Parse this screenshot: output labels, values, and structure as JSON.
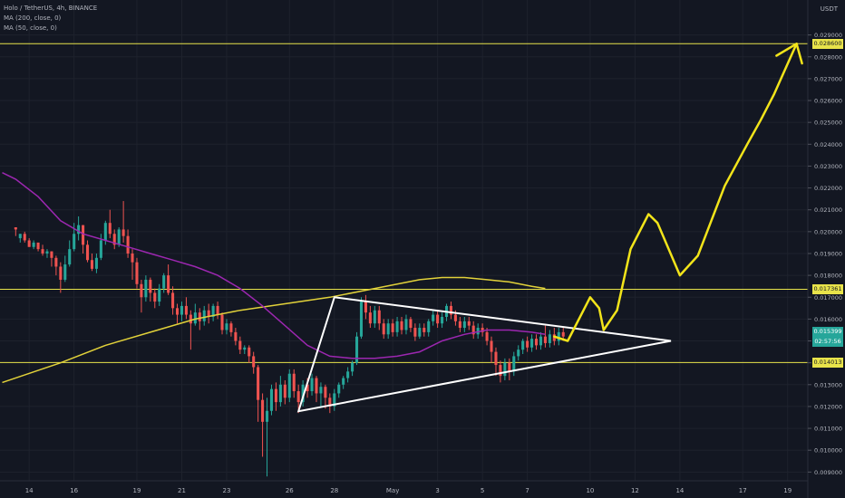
{
  "legend": {
    "symbol": "Holo / TetherUS, 4h, BINANCE",
    "ma200": "MA (200, close, 0)",
    "ma50": "MA (50, close, 0)"
  },
  "currency": "USDT",
  "colors": {
    "background": "#131722",
    "grid": "#1e222d",
    "up": "#26a69a",
    "down": "#ef5350",
    "ma200": "#e2d23a",
    "ma50": "#9c27b0",
    "level": "#e8e34a",
    "drawing": "#ffffff",
    "projection": "#f2e41a",
    "last_price": "#26a69a"
  },
  "chart_data": {
    "type": "candlestick",
    "y_axis": {
      "ticks": [
        "0.029000",
        "0.028000",
        "0.027000",
        "0.026000",
        "0.025000",
        "0.024000",
        "0.023000",
        "0.022000",
        "0.021000",
        "0.020000",
        "0.019000",
        "0.018000",
        "0.017000",
        "0.016000",
        "0.015000",
        "0.014000",
        "0.013000",
        "0.012000",
        "0.011000",
        "0.010000",
        "0.009000"
      ],
      "tick_values": [
        0.029,
        0.028,
        0.027,
        0.026,
        0.025,
        0.024,
        0.023,
        0.022,
        0.021,
        0.02,
        0.019,
        0.018,
        0.017,
        0.016,
        0.015,
        0.014,
        0.013,
        0.012,
        0.011,
        0.01,
        0.009
      ],
      "range": [
        0.0086,
        0.0306
      ]
    },
    "x_axis": {
      "ticks": [
        "14",
        "16",
        "19",
        "21",
        "23",
        "26",
        "28",
        "May",
        "3",
        "5",
        "7",
        "10",
        "12",
        "14",
        "17",
        "19"
      ],
      "tick_index": [
        3,
        13,
        27,
        37,
        47,
        61,
        71,
        84,
        94,
        104,
        114,
        128,
        138,
        148,
        162,
        172
      ]
    },
    "x_range": [
      -3.5,
      176.5
    ],
    "levels": [
      {
        "value": 0.0286,
        "label": "0.028600"
      },
      {
        "value": 0.017361,
        "label": "0.017361"
      },
      {
        "value": 0.014013,
        "label": "0.014013"
      }
    ],
    "last_price": {
      "value": 0.015399,
      "label": "0.015399",
      "countdown": "02:57:56"
    },
    "candles": [
      [
        0.0202,
        0.0201,
        0.0202,
        0.0198
      ],
      [
        0.0197,
        0.0199,
        0.0199,
        0.0195
      ],
      [
        0.0199,
        0.0196,
        0.02,
        0.0195
      ],
      [
        0.0196,
        0.0193,
        0.0197,
        0.0193
      ],
      [
        0.0193,
        0.0195,
        0.0196,
        0.0192
      ],
      [
        0.0195,
        0.0192,
        0.0195,
        0.0191
      ],
      [
        0.0192,
        0.019,
        0.0194,
        0.0189
      ],
      [
        0.019,
        0.0191,
        0.0192,
        0.0188
      ],
      [
        0.0191,
        0.0188,
        0.0191,
        0.0184
      ],
      [
        0.0188,
        0.0184,
        0.0189,
        0.018
      ],
      [
        0.0184,
        0.0178,
        0.0186,
        0.0172
      ],
      [
        0.0178,
        0.0185,
        0.0189,
        0.0177
      ],
      [
        0.0185,
        0.0192,
        0.0196,
        0.0184
      ],
      [
        0.0192,
        0.0199,
        0.0204,
        0.0191
      ],
      [
        0.0199,
        0.0203,
        0.0207,
        0.0196
      ],
      [
        0.0203,
        0.0194,
        0.0203,
        0.019
      ],
      [
        0.0194,
        0.0187,
        0.0196,
        0.0186
      ],
      [
        0.0187,
        0.0183,
        0.019,
        0.0182
      ],
      [
        0.0183,
        0.0188,
        0.019,
        0.0181
      ],
      [
        0.0188,
        0.0196,
        0.0199,
        0.0187
      ],
      [
        0.0196,
        0.0204,
        0.0205,
        0.0194
      ],
      [
        0.0204,
        0.0199,
        0.021,
        0.0197
      ],
      [
        0.0199,
        0.0194,
        0.0201,
        0.0192
      ],
      [
        0.0194,
        0.0201,
        0.0202,
        0.0193
      ],
      [
        0.0201,
        0.0198,
        0.0214,
        0.0195
      ],
      [
        0.0198,
        0.019,
        0.0201,
        0.0188
      ],
      [
        0.019,
        0.0186,
        0.0192,
        0.0178
      ],
      [
        0.0186,
        0.0176,
        0.0188,
        0.0174
      ],
      [
        0.0176,
        0.017,
        0.0178,
        0.0163
      ],
      [
        0.017,
        0.0178,
        0.018,
        0.0168
      ],
      [
        0.0178,
        0.0172,
        0.0179,
        0.0168
      ],
      [
        0.0172,
        0.0168,
        0.0174,
        0.0165
      ],
      [
        0.0168,
        0.0174,
        0.0176,
        0.0166
      ],
      [
        0.0174,
        0.018,
        0.0181,
        0.0172
      ],
      [
        0.018,
        0.0172,
        0.0185,
        0.0171
      ],
      [
        0.0172,
        0.0165,
        0.0175,
        0.0162
      ],
      [
        0.0165,
        0.0162,
        0.0167,
        0.0158
      ],
      [
        0.0162,
        0.0166,
        0.0168,
        0.0159
      ],
      [
        0.0166,
        0.0162,
        0.017,
        0.016
      ],
      [
        0.0162,
        0.0158,
        0.0164,
        0.0146
      ],
      [
        0.0158,
        0.0163,
        0.0167,
        0.0157
      ],
      [
        0.0163,
        0.0159,
        0.0165,
        0.0155
      ],
      [
        0.0159,
        0.0164,
        0.0166,
        0.0157
      ],
      [
        0.0164,
        0.0161,
        0.0167,
        0.0158
      ],
      [
        0.0161,
        0.0166,
        0.0167,
        0.0159
      ],
      [
        0.0166,
        0.0162,
        0.0168,
        0.016
      ],
      [
        0.0162,
        0.0155,
        0.0163,
        0.0153
      ],
      [
        0.0155,
        0.0158,
        0.016,
        0.0153
      ],
      [
        0.0158,
        0.0154,
        0.0159,
        0.0152
      ],
      [
        0.0154,
        0.015,
        0.0156,
        0.0148
      ],
      [
        0.015,
        0.0146,
        0.0152,
        0.0144
      ],
      [
        0.0146,
        0.0147,
        0.0148,
        0.0144
      ],
      [
        0.0147,
        0.0143,
        0.0148,
        0.014
      ],
      [
        0.0143,
        0.0138,
        0.0145,
        0.0135
      ],
      [
        0.0138,
        0.0123,
        0.0139,
        0.0113
      ],
      [
        0.0123,
        0.0113,
        0.0126,
        0.0097
      ],
      [
        0.0113,
        0.0118,
        0.0124,
        0.0088
      ],
      [
        0.0118,
        0.0128,
        0.013,
        0.0116
      ],
      [
        0.0128,
        0.0122,
        0.0131,
        0.0118
      ],
      [
        0.0122,
        0.013,
        0.0134,
        0.012
      ],
      [
        0.013,
        0.0124,
        0.0132,
        0.0121
      ],
      [
        0.0124,
        0.0135,
        0.0137,
        0.0122
      ],
      [
        0.0135,
        0.0127,
        0.0137,
        0.0124
      ],
      [
        0.0127,
        0.0122,
        0.013,
        0.0117
      ],
      [
        0.0122,
        0.013,
        0.0132,
        0.012
      ],
      [
        0.013,
        0.0127,
        0.0133,
        0.0124
      ],
      [
        0.0127,
        0.0133,
        0.0135,
        0.0125
      ],
      [
        0.0133,
        0.0126,
        0.0134,
        0.0122
      ],
      [
        0.0126,
        0.0129,
        0.0131,
        0.012
      ],
      [
        0.0129,
        0.0124,
        0.013,
        0.0119
      ],
      [
        0.0124,
        0.012,
        0.0126,
        0.0117
      ],
      [
        0.012,
        0.0126,
        0.0128,
        0.0118
      ],
      [
        0.0126,
        0.013,
        0.0131,
        0.0124
      ],
      [
        0.013,
        0.0133,
        0.0134,
        0.0128
      ],
      [
        0.0133,
        0.0136,
        0.0138,
        0.0131
      ],
      [
        0.0136,
        0.014,
        0.0141,
        0.0134
      ],
      [
        0.014,
        0.0152,
        0.0154,
        0.0139
      ],
      [
        0.0152,
        0.0168,
        0.017,
        0.0151
      ],
      [
        0.0168,
        0.0163,
        0.0171,
        0.016
      ],
      [
        0.0163,
        0.0158,
        0.0166,
        0.0156
      ],
      [
        0.0158,
        0.0164,
        0.0166,
        0.0156
      ],
      [
        0.0164,
        0.0158,
        0.0166,
        0.0155
      ],
      [
        0.0158,
        0.0153,
        0.016,
        0.0151
      ],
      [
        0.0153,
        0.0158,
        0.016,
        0.0151
      ],
      [
        0.0158,
        0.0154,
        0.016,
        0.0152
      ],
      [
        0.0154,
        0.0159,
        0.0161,
        0.0152
      ],
      [
        0.0159,
        0.0155,
        0.0161,
        0.0153
      ],
      [
        0.0155,
        0.016,
        0.0162,
        0.0153
      ],
      [
        0.016,
        0.0156,
        0.0161,
        0.0154
      ],
      [
        0.0156,
        0.0152,
        0.0158,
        0.015
      ],
      [
        0.0152,
        0.0156,
        0.0158,
        0.0151
      ],
      [
        0.0156,
        0.0154,
        0.0158,
        0.0152
      ],
      [
        0.0154,
        0.0159,
        0.016,
        0.0152
      ],
      [
        0.0159,
        0.0162,
        0.0164,
        0.0157
      ],
      [
        0.0162,
        0.0158,
        0.0164,
        0.0156
      ],
      [
        0.0158,
        0.0161,
        0.0163,
        0.0156
      ],
      [
        0.0161,
        0.0166,
        0.0167,
        0.0159
      ],
      [
        0.0166,
        0.0162,
        0.0168,
        0.016
      ],
      [
        0.0162,
        0.0159,
        0.0164,
        0.0157
      ],
      [
        0.0159,
        0.0156,
        0.0161,
        0.0154
      ],
      [
        0.0156,
        0.0159,
        0.0161,
        0.0154
      ],
      [
        0.0159,
        0.0157,
        0.0161,
        0.0155
      ],
      [
        0.0157,
        0.0153,
        0.0159,
        0.0151
      ],
      [
        0.0153,
        0.0156,
        0.0158,
        0.0151
      ],
      [
        0.0156,
        0.0154,
        0.0158,
        0.0152
      ],
      [
        0.0154,
        0.015,
        0.0156,
        0.0148
      ],
      [
        0.015,
        0.0145,
        0.0152,
        0.014
      ],
      [
        0.0145,
        0.0139,
        0.0147,
        0.0134
      ],
      [
        0.0139,
        0.0134,
        0.0141,
        0.0131
      ],
      [
        0.0134,
        0.014,
        0.0142,
        0.0132
      ],
      [
        0.014,
        0.0136,
        0.0142,
        0.0132
      ],
      [
        0.0136,
        0.0143,
        0.0145,
        0.0134
      ],
      [
        0.0143,
        0.0146,
        0.0148,
        0.0141
      ],
      [
        0.0146,
        0.015,
        0.0151,
        0.0144
      ],
      [
        0.015,
        0.0147,
        0.0152,
        0.0145
      ],
      [
        0.0147,
        0.0151,
        0.0153,
        0.0145
      ],
      [
        0.0151,
        0.0148,
        0.0153,
        0.0146
      ],
      [
        0.0148,
        0.0152,
        0.0154,
        0.0146
      ],
      [
        0.0152,
        0.0149,
        0.0157,
        0.0147
      ],
      [
        0.0149,
        0.0153,
        0.0155,
        0.0147
      ],
      [
        0.0153,
        0.015,
        0.0156,
        0.0148
      ],
      [
        0.015,
        0.0154,
        0.0156,
        0.0148
      ],
      [
        0.0154,
        0.0152,
        0.0156,
        0.015
      ]
    ],
    "ma200": [
      [
        -3,
        0.0131
      ],
      [
        10,
        0.014
      ],
      [
        20,
        0.0148
      ],
      [
        30,
        0.0154
      ],
      [
        40,
        0.016
      ],
      [
        50,
        0.0164
      ],
      [
        60,
        0.0167
      ],
      [
        70,
        0.017
      ],
      [
        80,
        0.0174
      ],
      [
        90,
        0.0178
      ],
      [
        95,
        0.0179
      ],
      [
        100,
        0.0179
      ],
      [
        105,
        0.0178
      ],
      [
        110,
        0.0177
      ],
      [
        115,
        0.0175
      ],
      [
        118,
        0.0174
      ]
    ],
    "ma50": [
      [
        -3,
        0.0227
      ],
      [
        0,
        0.0224
      ],
      [
        5,
        0.0216
      ],
      [
        10,
        0.0205
      ],
      [
        15,
        0.0199
      ],
      [
        20,
        0.0196
      ],
      [
        25,
        0.0193
      ],
      [
        30,
        0.019
      ],
      [
        35,
        0.0187
      ],
      [
        40,
        0.0184
      ],
      [
        45,
        0.018
      ],
      [
        50,
        0.0174
      ],
      [
        55,
        0.0166
      ],
      [
        60,
        0.0157
      ],
      [
        65,
        0.0148
      ],
      [
        70,
        0.0143
      ],
      [
        75,
        0.0142
      ],
      [
        80,
        0.0142
      ],
      [
        85,
        0.0143
      ],
      [
        90,
        0.0145
      ],
      [
        95,
        0.015
      ],
      [
        100,
        0.0153
      ],
      [
        105,
        0.0155
      ],
      [
        110,
        0.0155
      ],
      [
        115,
        0.0154
      ],
      [
        118,
        0.0153
      ]
    ],
    "triangle": [
      [
        71,
        0.017
      ],
      [
        146,
        0.015
      ],
      [
        63,
        0.01178
      ]
    ],
    "projection": [
      [
        120,
        0.0152
      ],
      [
        123,
        0.015
      ],
      [
        128,
        0.017
      ],
      [
        130,
        0.0165
      ],
      [
        131,
        0.0155
      ],
      [
        134,
        0.0164
      ],
      [
        137,
        0.0192
      ],
      [
        141,
        0.0208
      ],
      [
        143,
        0.0204
      ],
      [
        148,
        0.018
      ],
      [
        152,
        0.0189
      ],
      [
        158,
        0.0221
      ],
      [
        163,
        0.024
      ],
      [
        166,
        0.0251
      ],
      [
        169,
        0.0263
      ],
      [
        174,
        0.0286
      ]
    ],
    "projection_arrow": [
      [
        169.5,
        0.02805
      ],
      [
        174,
        0.0286
      ],
      [
        175.2,
        0.0277
      ]
    ]
  }
}
